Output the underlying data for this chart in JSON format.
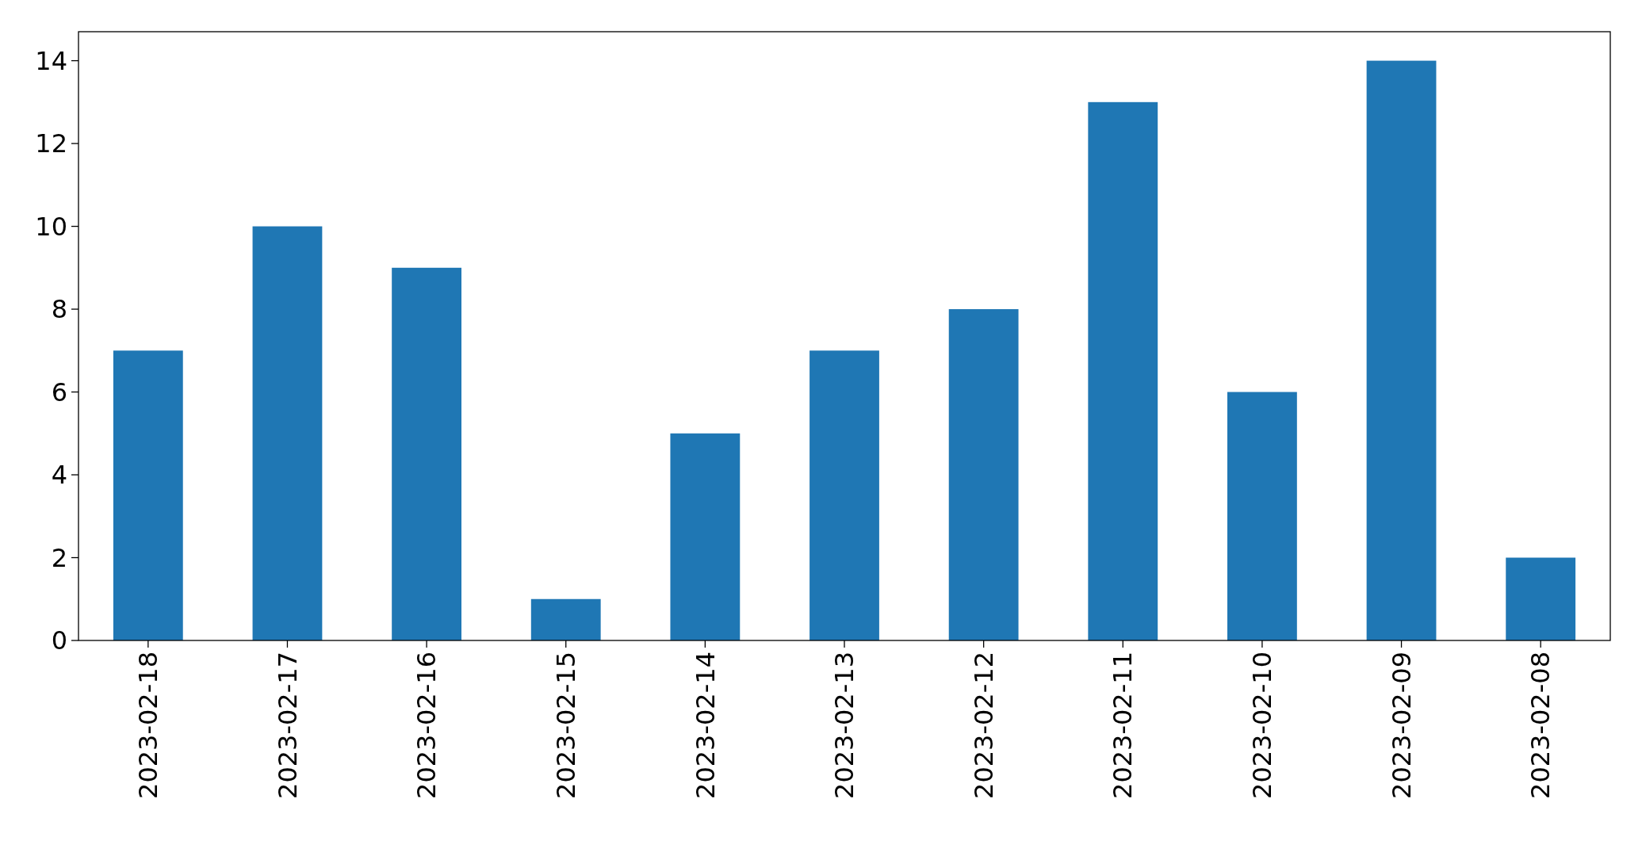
{
  "chart_data": {
    "type": "bar",
    "categories": [
      "2023-02-18",
      "2023-02-17",
      "2023-02-16",
      "2023-02-15",
      "2023-02-14",
      "2023-02-13",
      "2023-02-12",
      "2023-02-11",
      "2023-02-10",
      "2023-02-09",
      "2023-02-08"
    ],
    "values": [
      7,
      10,
      9,
      1,
      5,
      7,
      8,
      13,
      6,
      14,
      2
    ],
    "color": "#1f77b4",
    "ylim": [
      0,
      14.7
    ],
    "yticks": [
      0,
      2,
      4,
      6,
      8,
      10,
      12,
      14
    ],
    "grid": false
  }
}
